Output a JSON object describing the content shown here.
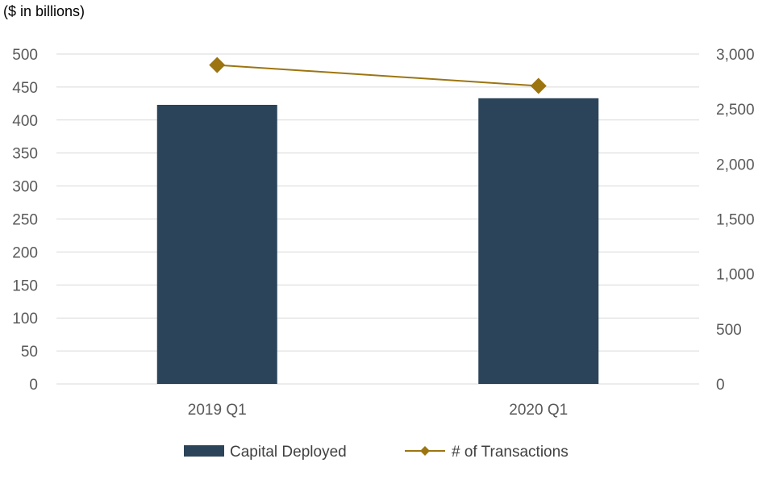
{
  "chart_data": {
    "type": "bar",
    "unit_label": "($ in billions)",
    "categories": [
      "2019 Q1",
      "2020 Q1"
    ],
    "series": [
      {
        "name": "Capital Deployed",
        "type": "bar",
        "axis": "left",
        "values": [
          423,
          433
        ]
      },
      {
        "name": "# of Transactions",
        "type": "line",
        "axis": "right",
        "values": [
          2900,
          2710
        ]
      }
    ],
    "ylim_left": [
      0,
      500
    ],
    "yticks_left": [
      "0",
      "50",
      "100",
      "150",
      "200",
      "250",
      "300",
      "350",
      "400",
      "450",
      "500"
    ],
    "ylim_right": [
      0,
      3000
    ],
    "yticks_right": [
      "0",
      "500",
      "1,000",
      "1,500",
      "2,000",
      "2,500",
      "3,000"
    ],
    "grid": true,
    "legend_position": "bottom",
    "colors": {
      "bar": "#2B4459",
      "line": "#9C7511",
      "grid": "#D9D9D9",
      "tick_text": "#595959"
    }
  }
}
